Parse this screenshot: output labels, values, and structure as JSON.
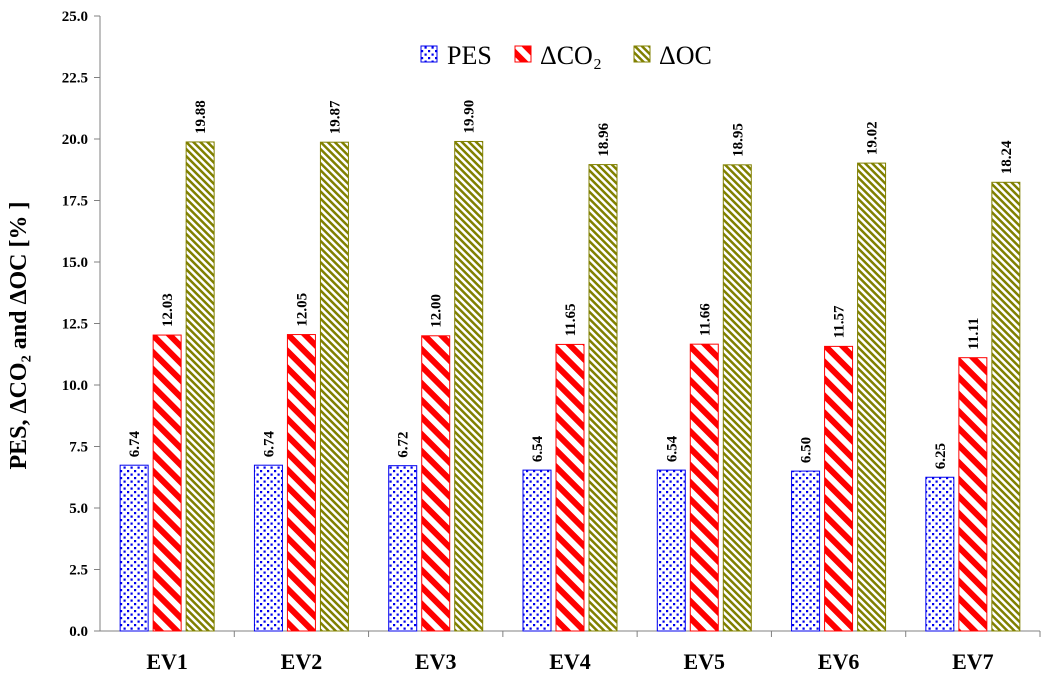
{
  "chart_data": {
    "type": "bar",
    "ylabel": "PES, ΔCO₂ and ΔOC [% ]",
    "xlabel": "",
    "ylim": [
      0,
      25
    ],
    "ytick_step": 2.5,
    "ytick_labels": [
      "0.0",
      "2.5",
      "5.0",
      "7.5",
      "10.0",
      "12.5",
      "15.0",
      "17.5",
      "20.0",
      "22.5",
      "25.0"
    ],
    "categories": [
      "EV1",
      "EV2",
      "EV3",
      "EV4",
      "EV5",
      "EV6",
      "EV7"
    ],
    "series": [
      {
        "name": "PES",
        "pattern": "dots",
        "color": "#0000ee",
        "values": [
          6.74,
          6.74,
          6.72,
          6.54,
          6.54,
          6.5,
          6.25
        ],
        "labels": [
          "6.74",
          "6.74",
          "6.72",
          "6.54",
          "6.54",
          "6.50",
          "6.25"
        ]
      },
      {
        "name": "ΔCO₂",
        "pattern": "diagonal-stripes",
        "color": "#ff0000",
        "values": [
          12.03,
          12.05,
          12.0,
          11.65,
          11.66,
          11.57,
          11.11
        ],
        "labels": [
          "12.03",
          "12.05",
          "12.00",
          "11.65",
          "11.66",
          "11.57",
          "11.11"
        ]
      },
      {
        "name": "ΔOC",
        "pattern": "fine-diagonal",
        "color": "#808000",
        "values": [
          19.88,
          19.87,
          19.9,
          18.96,
          18.95,
          19.02,
          18.24
        ],
        "labels": [
          "19.88",
          "19.87",
          "19.90",
          "18.96",
          "18.95",
          "19.02",
          "18.24"
        ]
      }
    ],
    "grid": false,
    "legend_position": "top-center"
  }
}
